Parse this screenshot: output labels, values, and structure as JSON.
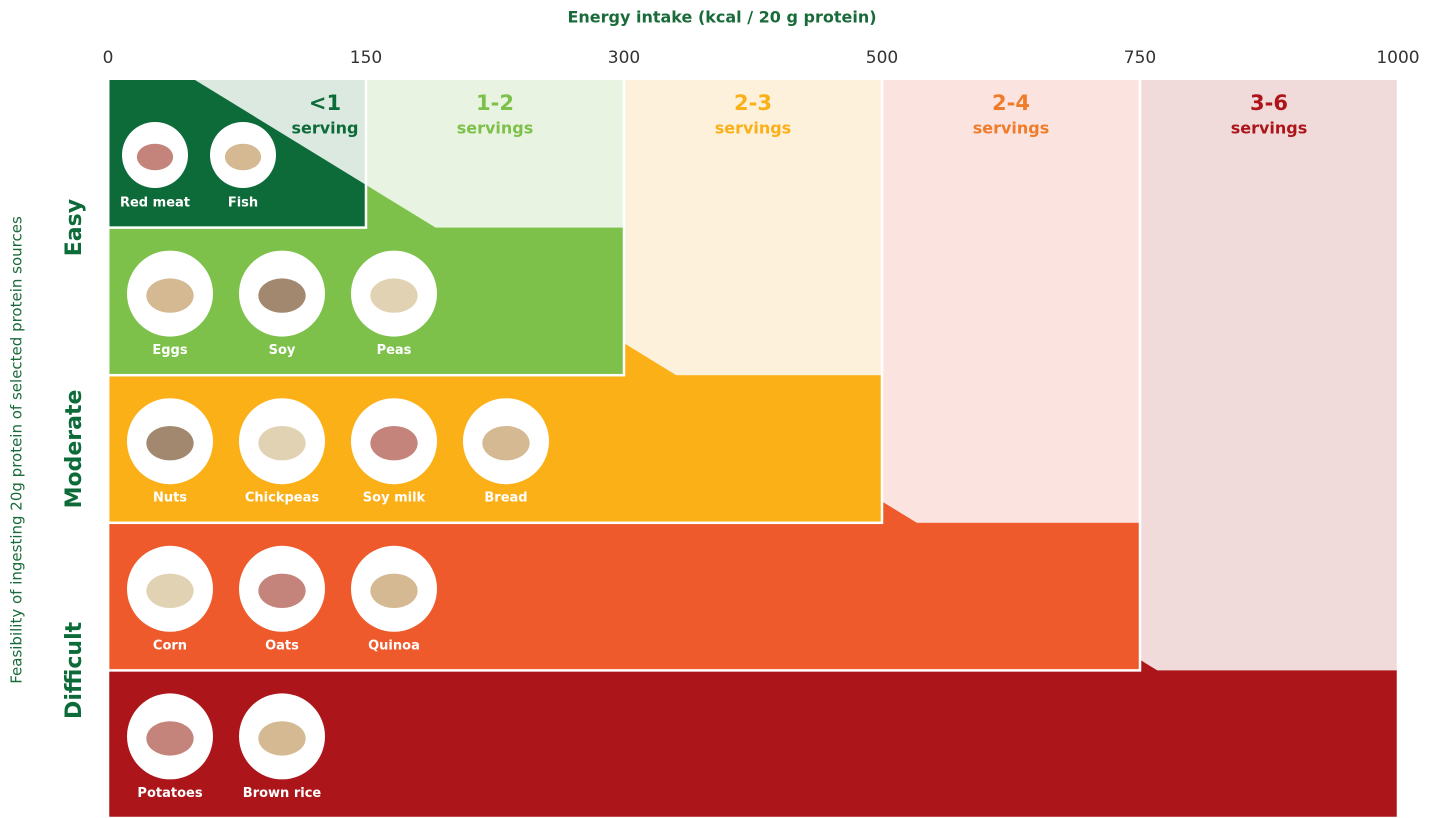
{
  "chart_data": {
    "type": "tiered-diagram",
    "x_label": "Energy intake (kcal / 20 g protein)",
    "y_label": "Feasibility of ingesting 20g protein of selected protein sources",
    "boundaries": [
      0,
      150,
      300,
      500,
      750,
      1000
    ],
    "feasibility": [
      "Easy",
      "Moderate",
      "Difficult"
    ],
    "columns": [
      {
        "top": "<1",
        "bottom": "serving",
        "color": "#0d6b3a",
        "foods": [
          "Red meat",
          "Fish"
        ]
      },
      {
        "top": "1-2",
        "bottom": "servings",
        "color": "#7dc14b",
        "foods": [
          "Eggs",
          "Soy",
          "Peas"
        ]
      },
      {
        "top": "2-3",
        "bottom": "servings",
        "color": "#fbb018",
        "foods": [
          "Nuts",
          "Chickpeas",
          "Soy milk",
          "Bread"
        ]
      },
      {
        "top": "2-4",
        "bottom": "servings",
        "color": "#ee5a2b",
        "foods": [
          "Corn",
          "Oats",
          "Quinoa"
        ]
      },
      {
        "top": "3-6",
        "bottom": "servings",
        "color": "#ac1519",
        "foods": [
          "Potatoes",
          "Brown rice"
        ]
      }
    ]
  }
}
